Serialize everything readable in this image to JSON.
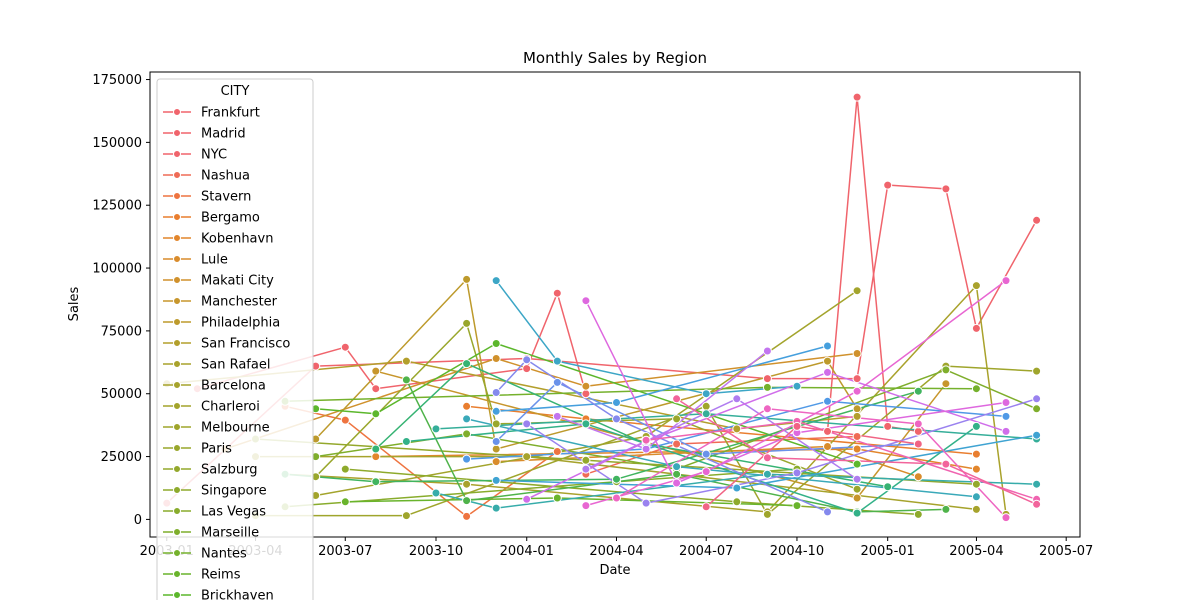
{
  "chart_data": {
    "type": "line",
    "title": "Monthly Sales by Region",
    "xlabel": "Date",
    "ylabel": "Sales",
    "x_ticks": [
      "2003-01",
      "2003-04",
      "2003-07",
      "2003-10",
      "2004-01",
      "2004-04",
      "2004-07",
      "2004-10",
      "2005-01",
      "2005-04",
      "2005-07"
    ],
    "y_ticks": [
      0,
      25000,
      50000,
      75000,
      100000,
      125000,
      150000,
      175000
    ],
    "xlim": [
      "2002-12-15",
      "2005-07-15"
    ],
    "ylim": [
      -7000,
      178000
    ],
    "grid": false,
    "legend": {
      "title": "CITY",
      "placement": "upper-left"
    },
    "series": [
      {
        "name": "Frankfurt",
        "color": "#f0646c",
        "points": [
          [
            "2004-11-01",
            35000
          ],
          [
            "2004-12-01",
            168000
          ],
          [
            "2005-01-01",
            37000
          ],
          [
            "2005-02-01",
            35000
          ]
        ]
      },
      {
        "name": "Madrid",
        "color": "#f0646c",
        "points": [
          [
            "2003-01-01",
            6500
          ],
          [
            "2003-06-01",
            61000
          ],
          [
            "2004-01-01",
            64000
          ],
          [
            "2004-09-01",
            56000
          ],
          [
            "2004-12-01",
            56000
          ],
          [
            "2005-01-01",
            133000
          ],
          [
            "2005-03-01",
            131500
          ],
          [
            "2005-04-01",
            76000
          ],
          [
            "2005-06-01",
            119000
          ]
        ]
      },
      {
        "name": "NYC",
        "color": "#f0646c",
        "points": [
          [
            "2003-02-01",
            52000
          ],
          [
            "2003-07-01",
            68500
          ],
          [
            "2003-08-01",
            52000
          ],
          [
            "2004-01-01",
            60000
          ],
          [
            "2004-02-01",
            90000
          ],
          [
            "2004-03-01",
            50000
          ]
        ]
      },
      {
        "name": "Nashua",
        "color": "#ef6b56",
        "points": [
          [
            "2004-03-01",
            18000
          ],
          [
            "2004-06-01",
            30000
          ],
          [
            "2004-12-01",
            33000
          ]
        ]
      },
      {
        "name": "Stavern",
        "color": "#ee7440",
        "points": [
          [
            "2003-05-01",
            45000
          ],
          [
            "2003-07-01",
            39500
          ],
          [
            "2003-11-01",
            1200
          ],
          [
            "2004-02-01",
            27000
          ]
        ]
      },
      {
        "name": "Bergamo",
        "color": "#e97e2f",
        "points": [
          [
            "2003-11-01",
            45000
          ],
          [
            "2004-03-01",
            40000
          ],
          [
            "2005-04-01",
            26000
          ]
        ]
      },
      {
        "name": "Kobenhavn",
        "color": "#e2862c",
        "points": [
          [
            "2003-08-01",
            25000
          ],
          [
            "2004-12-01",
            28000
          ],
          [
            "2005-04-01",
            20000
          ]
        ]
      },
      {
        "name": "Lule",
        "color": "#d98c2c",
        "points": [
          [
            "2003-12-01",
            23000
          ],
          [
            "2004-11-01",
            29000
          ],
          [
            "2005-02-01",
            17000
          ]
        ]
      },
      {
        "name": "Makati City",
        "color": "#d0912c",
        "points": [
          [
            "2003-03-01",
            28000
          ],
          [
            "2003-12-01",
            64000
          ],
          [
            "2004-03-01",
            53000
          ],
          [
            "2004-12-01",
            66000
          ]
        ]
      },
      {
        "name": "Manchester",
        "color": "#c7962c",
        "points": [
          [
            "2003-08-01",
            59000
          ],
          [
            "2004-12-01",
            8500
          ],
          [
            "2005-03-01",
            54000
          ]
        ]
      },
      {
        "name": "Philadelphia",
        "color": "#bd9a2c",
        "points": [
          [
            "2003-06-01",
            32000
          ],
          [
            "2003-11-01",
            95500
          ],
          [
            "2003-12-01",
            28000
          ],
          [
            "2004-11-01",
            63000
          ],
          [
            "2004-12-01",
            44000
          ]
        ]
      },
      {
        "name": "San Francisco",
        "color": "#b39f2c",
        "points": [
          [
            "2003-01-01",
            54000
          ],
          [
            "2003-09-01",
            63000
          ],
          [
            "2004-08-01",
            36000
          ],
          [
            "2004-12-01",
            41000
          ]
        ]
      },
      {
        "name": "San Rafael",
        "color": "#a9a22c",
        "points": [
          [
            "2003-05-01",
            18000
          ],
          [
            "2003-11-01",
            14000
          ],
          [
            "2004-09-01",
            3000
          ],
          [
            "2005-04-01",
            93000
          ],
          [
            "2005-05-01",
            2000
          ]
        ]
      },
      {
        "name": "Barcelona",
        "color": "#a6a32c",
        "points": [
          [
            "2003-04-01",
            25000
          ],
          [
            "2004-01-01",
            25000
          ],
          [
            "2005-04-01",
            4000
          ]
        ]
      },
      {
        "name": "Charleroi",
        "color": "#a3a42c",
        "points": [
          [
            "2003-06-01",
            9500
          ],
          [
            "2004-05-01",
            33000
          ],
          [
            "2004-12-01",
            91000
          ]
        ]
      },
      {
        "name": "Melbourne",
        "color": "#9fa52c",
        "points": [
          [
            "2003-04-01",
            1500
          ],
          [
            "2003-09-01",
            1500
          ],
          [
            "2004-07-01",
            45000
          ],
          [
            "2004-09-01",
            2000
          ],
          [
            "2005-03-01",
            61000
          ],
          [
            "2005-06-01",
            59000
          ]
        ]
      },
      {
        "name": "Paris",
        "color": "#99a72c",
        "points": [
          [
            "2003-06-01",
            17000
          ],
          [
            "2003-11-01",
            78000
          ],
          [
            "2003-12-01",
            38000
          ],
          [
            "2004-06-01",
            40000
          ],
          [
            "2004-12-01",
            12000
          ]
        ]
      },
      {
        "name": "Salzburg",
        "color": "#94a82c",
        "points": [
          [
            "2003-04-01",
            32000
          ],
          [
            "2004-03-01",
            23500
          ],
          [
            "2005-04-01",
            14000
          ]
        ]
      },
      {
        "name": "Singapore",
        "color": "#8eaa2c",
        "points": [
          [
            "2003-07-01",
            20000
          ],
          [
            "2004-08-01",
            7000
          ],
          [
            "2005-02-01",
            2000
          ]
        ]
      },
      {
        "name": "Las Vegas",
        "color": "#88ac2c",
        "points": [
          [
            "2003-05-01",
            5000
          ],
          [
            "2004-04-01",
            15000
          ],
          [
            "2004-10-01",
            20000
          ]
        ]
      },
      {
        "name": "Marseille",
        "color": "#7fae2c",
        "points": [
          [
            "2003-06-01",
            25000
          ],
          [
            "2003-11-01",
            34000
          ],
          [
            "2004-06-01",
            20000
          ],
          [
            "2005-03-01",
            59500
          ],
          [
            "2005-06-01",
            44000
          ]
        ]
      },
      {
        "name": "Nantes",
        "color": "#75b12c",
        "points": [
          [
            "2003-05-01",
            47000
          ],
          [
            "2004-09-01",
            52500
          ],
          [
            "2005-04-01",
            52000
          ]
        ]
      },
      {
        "name": "Reims",
        "color": "#69b42c",
        "points": [
          [
            "2003-07-01",
            7000
          ],
          [
            "2004-02-01",
            8500
          ],
          [
            "2004-10-01",
            5500
          ]
        ]
      },
      {
        "name": "Brickhaven",
        "color": "#5cb72c",
        "points": [
          [
            "2003-06-01",
            44000
          ],
          [
            "2003-08-01",
            42000
          ],
          [
            "2003-12-01",
            70000
          ],
          [
            "2004-12-01",
            22000
          ]
        ]
      },
      {
        "name": "",
        "color": "#4fb34a",
        "points": [
          [
            "2003-09-01",
            55500
          ],
          [
            "2003-11-01",
            7500
          ],
          [
            "2004-06-01",
            18000
          ],
          [
            "2004-12-01",
            3000
          ],
          [
            "2005-03-01",
            4000
          ]
        ]
      },
      {
        "name": "",
        "color": "#40b45f",
        "points": [
          [
            "2003-05-01",
            18000
          ],
          [
            "2003-08-01",
            15000
          ],
          [
            "2004-04-01",
            16000
          ],
          [
            "2005-02-01",
            51000
          ]
        ]
      },
      {
        "name": "",
        "color": "#36b373",
        "points": [
          [
            "2003-08-01",
            28000
          ],
          [
            "2003-11-01",
            62000
          ],
          [
            "2004-05-01",
            30000
          ],
          [
            "2005-01-01",
            13000
          ]
        ]
      },
      {
        "name": "",
        "color": "#33b188",
        "points": [
          [
            "2003-09-01",
            31000
          ],
          [
            "2004-03-01",
            38000
          ],
          [
            "2004-12-01",
            2500
          ],
          [
            "2005-04-01",
            37000
          ]
        ]
      },
      {
        "name": "",
        "color": "#35ae99",
        "points": [
          [
            "2003-10-01",
            36000
          ],
          [
            "2004-07-01",
            42000
          ],
          [
            "2005-06-01",
            32000
          ]
        ]
      },
      {
        "name": "",
        "color": "#37acaa",
        "points": [
          [
            "2003-10-01",
            10500
          ],
          [
            "2003-12-01",
            4500
          ],
          [
            "2004-09-01",
            18000
          ],
          [
            "2005-06-01",
            14000
          ]
        ]
      },
      {
        "name": "",
        "color": "#3aa9b9",
        "points": [
          [
            "2003-11-01",
            40000
          ],
          [
            "2004-06-01",
            21000
          ],
          [
            "2005-04-01",
            9000
          ]
        ]
      },
      {
        "name": "",
        "color": "#3ca6c6",
        "points": [
          [
            "2003-12-01",
            95000
          ],
          [
            "2004-02-01",
            63000
          ],
          [
            "2004-07-01",
            50000
          ],
          [
            "2004-10-01",
            53000
          ]
        ]
      },
      {
        "name": "",
        "color": "#3fa3d2",
        "points": [
          [
            "2003-12-01",
            15500
          ],
          [
            "2004-08-01",
            12500
          ],
          [
            "2005-06-01",
            33500
          ]
        ]
      },
      {
        "name": "",
        "color": "#459fdd",
        "points": [
          [
            "2003-12-01",
            43000
          ],
          [
            "2004-04-01",
            46500
          ],
          [
            "2004-11-01",
            69000
          ]
        ]
      },
      {
        "name": "",
        "color": "#5099e6",
        "points": [
          [
            "2003-11-01",
            24000
          ],
          [
            "2004-05-01",
            28000
          ],
          [
            "2004-11-01",
            47000
          ],
          [
            "2005-05-01",
            41000
          ]
        ]
      },
      {
        "name": "",
        "color": "#6a92ea",
        "points": [
          [
            "2003-12-01",
            31000
          ],
          [
            "2004-02-01",
            54500
          ],
          [
            "2004-07-01",
            26000
          ],
          [
            "2005-02-01",
            30000
          ]
        ]
      },
      {
        "name": "",
        "color": "#8489ed",
        "points": [
          [
            "2003-12-01",
            50500
          ],
          [
            "2004-01-01",
            63500
          ],
          [
            "2004-04-01",
            40000
          ],
          [
            "2004-11-01",
            3000
          ]
        ]
      },
      {
        "name": "",
        "color": "#9a82ef",
        "points": [
          [
            "2004-01-01",
            38000
          ],
          [
            "2004-05-01",
            6500
          ],
          [
            "2004-10-01",
            18500
          ],
          [
            "2005-06-01",
            48000
          ]
        ]
      },
      {
        "name": "",
        "color": "#b07cf0",
        "points": [
          [
            "2004-03-01",
            20000
          ],
          [
            "2004-08-01",
            48000
          ],
          [
            "2004-12-01",
            16000
          ]
        ]
      },
      {
        "name": "",
        "color": "#c275ef",
        "points": [
          [
            "2004-02-01",
            41000
          ],
          [
            "2004-05-01",
            28000
          ],
          [
            "2004-09-01",
            67000
          ]
        ]
      },
      {
        "name": "",
        "color": "#d06eea",
        "points": [
          [
            "2004-01-01",
            8000
          ],
          [
            "2004-05-01",
            31000
          ],
          [
            "2004-11-01",
            58500
          ],
          [
            "2005-05-01",
            35000
          ]
        ]
      },
      {
        "name": "",
        "color": "#de68df",
        "points": [
          [
            "2004-03-01",
            87000
          ],
          [
            "2004-06-01",
            14500
          ],
          [
            "2004-10-01",
            34500
          ],
          [
            "2005-05-01",
            46500
          ]
        ]
      },
      {
        "name": "",
        "color": "#e866d2",
        "points": [
          [
            "2004-03-01",
            5500
          ],
          [
            "2004-07-01",
            19000
          ],
          [
            "2004-12-01",
            51000
          ],
          [
            "2005-05-01",
            95000
          ]
        ]
      },
      {
        "name": "",
        "color": "#ee66c2",
        "points": [
          [
            "2004-04-01",
            8500
          ],
          [
            "2004-09-01",
            44000
          ],
          [
            "2005-02-01",
            38000
          ],
          [
            "2005-05-01",
            700
          ]
        ]
      },
      {
        "name": "",
        "color": "#f064b0",
        "points": [
          [
            "2004-05-01",
            31500
          ],
          [
            "2004-10-01",
            39000
          ],
          [
            "2005-06-01",
            8000
          ]
        ]
      },
      {
        "name": "",
        "color": "#f2649b",
        "points": [
          [
            "2004-06-01",
            48000
          ],
          [
            "2004-09-01",
            24500
          ],
          [
            "2005-03-01",
            22000
          ],
          [
            "2005-06-01",
            6000
          ]
        ]
      },
      {
        "name": "",
        "color": "#f16484",
        "points": [
          [
            "2004-07-01",
            5000
          ],
          [
            "2004-10-01",
            37000
          ],
          [
            "2005-02-01",
            30000
          ]
        ]
      }
    ]
  }
}
